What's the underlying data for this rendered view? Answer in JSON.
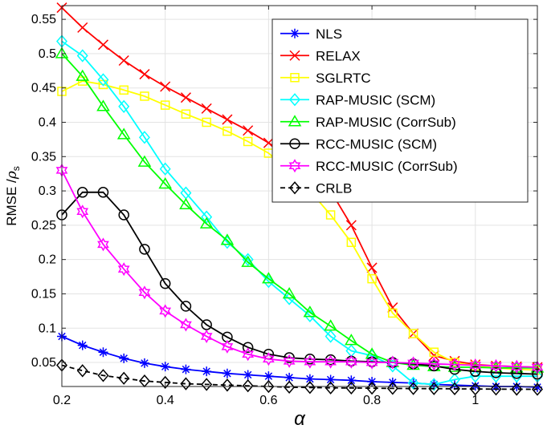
{
  "chart_data": {
    "type": "line",
    "xlabel": "α",
    "ylabel_main": "RMSE /",
    "ylabel_rho": "ρ",
    "ylabel_sub": "s",
    "xlim": [
      0.2,
      1.12
    ],
    "ylim": [
      0.015,
      0.57
    ],
    "xticks": [
      0.2,
      0.4,
      0.6,
      0.8,
      1
    ],
    "xtick_labels": [
      "0.2",
      "0.4",
      "0.6",
      "0.8",
      "1"
    ],
    "yticks": [
      0.05,
      0.1,
      0.15,
      0.2,
      0.25,
      0.3,
      0.35,
      0.4,
      0.45,
      0.5,
      0.55
    ],
    "ytick_labels": [
      "0.05",
      "0.1",
      "0.15",
      "0.2",
      "0.25",
      "0.3",
      "0.35",
      "0.4",
      "0.45",
      "0.5",
      "0.55"
    ],
    "grid": true,
    "legend_position": "top-right",
    "x": [
      0.2,
      0.24,
      0.28,
      0.32,
      0.36,
      0.4,
      0.44,
      0.48,
      0.52,
      0.56,
      0.6,
      0.64,
      0.68,
      0.72,
      0.76,
      0.8,
      0.84,
      0.88,
      0.92,
      0.96,
      1.0,
      1.04,
      1.08,
      1.12
    ],
    "series": [
      {
        "name": "NLS",
        "color": "#0000ff",
        "marker": "asterisk",
        "values": [
          0.088,
          0.075,
          0.065,
          0.056,
          0.049,
          0.044,
          0.04,
          0.037,
          0.034,
          0.032,
          0.03,
          0.028,
          0.026,
          0.025,
          0.024,
          0.022,
          0.021,
          0.02,
          0.018,
          0.017,
          0.016,
          0.015,
          0.015,
          0.014
        ]
      },
      {
        "name": "RELAX",
        "color": "#ff0000",
        "marker": "x",
        "values": [
          0.567,
          0.538,
          0.513,
          0.49,
          0.47,
          0.452,
          0.436,
          0.42,
          0.404,
          0.388,
          0.37,
          0.35,
          0.33,
          0.3,
          0.25,
          0.188,
          0.13,
          0.092,
          0.06,
          0.052,
          0.047,
          0.045,
          0.044,
          0.043
        ]
      },
      {
        "name": "SGLRTC",
        "color": "#ffff00",
        "marker": "square",
        "values": [
          0.445,
          0.46,
          0.455,
          0.447,
          0.438,
          0.425,
          0.412,
          0.4,
          0.387,
          0.372,
          0.355,
          0.33,
          0.3,
          0.265,
          0.225,
          0.172,
          0.122,
          0.092,
          0.065,
          0.05,
          0.045,
          0.042,
          0.04,
          0.039
        ]
      },
      {
        "name": "RAP-MUSIC (SCM)",
        "color": "#00ffff",
        "marker": "diamond",
        "values": [
          0.518,
          0.497,
          0.462,
          0.423,
          0.378,
          0.332,
          0.297,
          0.262,
          0.225,
          0.2,
          0.168,
          0.143,
          0.118,
          0.088,
          0.067,
          0.06,
          0.045,
          0.02,
          0.018,
          0.025,
          0.03,
          0.03,
          0.03,
          0.03
        ]
      },
      {
        "name": "RAP-MUSIC (CorrSub)",
        "color": "#00ff00",
        "marker": "triangle",
        "values": [
          0.5,
          0.467,
          0.423,
          0.382,
          0.342,
          0.31,
          0.28,
          0.252,
          0.228,
          0.196,
          0.172,
          0.15,
          0.123,
          0.103,
          0.082,
          0.062,
          0.05,
          0.046,
          0.044,
          0.043,
          0.043,
          0.042,
          0.042,
          0.042
        ]
      },
      {
        "name": "RCC-MUSIC (SCM)",
        "color": "#000000",
        "marker": "circle",
        "values": [
          0.265,
          0.298,
          0.298,
          0.265,
          0.215,
          0.165,
          0.132,
          0.105,
          0.087,
          0.072,
          0.062,
          0.057,
          0.055,
          0.054,
          0.052,
          0.051,
          0.05,
          0.048,
          0.045,
          0.04,
          0.037,
          0.035,
          0.034,
          0.033
        ]
      },
      {
        "name": "RCC-MUSIC (CorrSub)",
        "color": "#ff00ff",
        "marker": "hexagram",
        "values": [
          0.33,
          0.27,
          0.222,
          0.186,
          0.152,
          0.125,
          0.105,
          0.088,
          0.073,
          0.062,
          0.055,
          0.052,
          0.051,
          0.051,
          0.051,
          0.05,
          0.05,
          0.049,
          0.048,
          0.047,
          0.046,
          0.045,
          0.044,
          0.043
        ]
      },
      {
        "name": "CRLB",
        "color": "#000000",
        "marker": "diamond",
        "dashed": true,
        "values": [
          0.046,
          0.038,
          0.031,
          0.027,
          0.023,
          0.021,
          0.019,
          0.018,
          0.017,
          0.016,
          0.015,
          0.014,
          0.0135,
          0.013,
          0.0128,
          0.0125,
          0.0122,
          0.012,
          0.0118,
          0.0116,
          0.0114,
          0.0112,
          0.011,
          0.0109
        ]
      }
    ]
  }
}
